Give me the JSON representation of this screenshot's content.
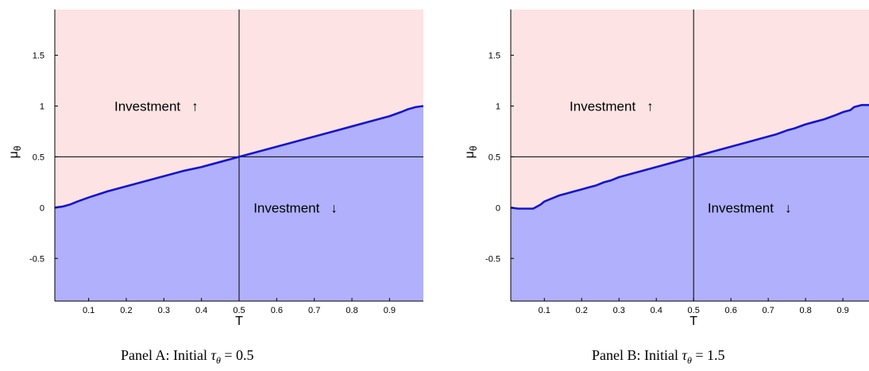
{
  "chart_data": [
    {
      "type": "area",
      "panel": "Panel A",
      "caption": {
        "prefix": "Panel A: Initial",
        "value": "0.5"
      },
      "xlabel": "T",
      "ylabel_main": "μ",
      "ylabel_sub": "θ",
      "xlim": [
        0.01,
        0.99
      ],
      "ylim": [
        -0.92,
        1.95
      ],
      "xticks": [
        "0.1",
        "0.2",
        "0.3",
        "0.4",
        "0.5",
        "0.6",
        "0.7",
        "0.8",
        "0.9"
      ],
      "yticks": [
        "-0.5",
        "0",
        "0.5",
        "1",
        "1.5"
      ],
      "xtick_values": [
        0.1,
        0.2,
        0.3,
        0.4,
        0.5,
        0.6,
        0.7,
        0.8,
        0.9
      ],
      "ytick_values": [
        -0.5,
        0,
        0.5,
        1,
        1.5
      ],
      "vline": 0.5,
      "hline": 0.5,
      "upper_region_color": "#fde3e3",
      "lower_region_color": "#b0b0fc",
      "line_color": "#1414cf",
      "boundary": {
        "x": [
          0.01,
          0.03,
          0.05,
          0.07,
          0.1,
          0.15,
          0.2,
          0.25,
          0.3,
          0.35,
          0.4,
          0.45,
          0.5,
          0.55,
          0.6,
          0.65,
          0.7,
          0.75,
          0.8,
          0.85,
          0.9,
          0.93,
          0.95,
          0.97,
          0.99
        ],
        "y": [
          0,
          0.01,
          0.03,
          0.06,
          0.1,
          0.16,
          0.21,
          0.26,
          0.31,
          0.36,
          0.4,
          0.45,
          0.5,
          0.55,
          0.6,
          0.65,
          0.7,
          0.75,
          0.8,
          0.85,
          0.9,
          0.94,
          0.97,
          0.99,
          1.0
        ]
      },
      "annotations": [
        {
          "text": "Investment",
          "arrow": "↑",
          "x": 0.28,
          "y": 1.0
        },
        {
          "text": "Investment",
          "arrow": "↓",
          "x": 0.65,
          "y": 0.0
        }
      ]
    },
    {
      "type": "area",
      "panel": "Panel B",
      "caption": {
        "prefix": "Panel B: Initial",
        "value": "1.5"
      },
      "xlabel": "T",
      "ylabel_main": "μ",
      "ylabel_sub": "θ",
      "xlim": [
        0.01,
        0.97
      ],
      "ylim": [
        -0.92,
        1.95
      ],
      "xticks": [
        "0.1",
        "0.2",
        "0.3",
        "0.4",
        "0.5",
        "0.6",
        "0.7",
        "0.8",
        "0.9"
      ],
      "yticks": [
        "-0.5",
        "0",
        "0.5",
        "1",
        "1.5"
      ],
      "xtick_values": [
        0.1,
        0.2,
        0.3,
        0.4,
        0.5,
        0.6,
        0.7,
        0.8,
        0.9
      ],
      "ytick_values": [
        -0.5,
        0,
        0.5,
        1,
        1.5
      ],
      "vline": 0.5,
      "hline": 0.5,
      "upper_region_color": "#fde3e3",
      "lower_region_color": "#b0b0fc",
      "line_color": "#1414cf",
      "boundary": {
        "x": [
          0.01,
          0.03,
          0.05,
          0.07,
          0.09,
          0.1,
          0.12,
          0.14,
          0.16,
          0.18,
          0.2,
          0.22,
          0.24,
          0.26,
          0.28,
          0.3,
          0.35,
          0.4,
          0.45,
          0.5,
          0.55,
          0.6,
          0.65,
          0.68,
          0.72,
          0.75,
          0.77,
          0.8,
          0.82,
          0.85,
          0.88,
          0.9,
          0.92,
          0.93,
          0.95,
          0.97
        ],
        "y": [
          0,
          -0.01,
          -0.01,
          -0.01,
          0.03,
          0.06,
          0.09,
          0.12,
          0.14,
          0.16,
          0.18,
          0.2,
          0.22,
          0.25,
          0.27,
          0.3,
          0.35,
          0.4,
          0.45,
          0.5,
          0.55,
          0.6,
          0.65,
          0.68,
          0.72,
          0.76,
          0.78,
          0.82,
          0.84,
          0.87,
          0.91,
          0.94,
          0.96,
          0.99,
          1.01,
          1.01
        ]
      },
      "annotations": [
        {
          "text": "Investment",
          "arrow": "↑",
          "x": 0.28,
          "y": 1.0
        },
        {
          "text": "Investment",
          "arrow": "↓",
          "x": 0.65,
          "y": 0.0
        }
      ]
    }
  ]
}
